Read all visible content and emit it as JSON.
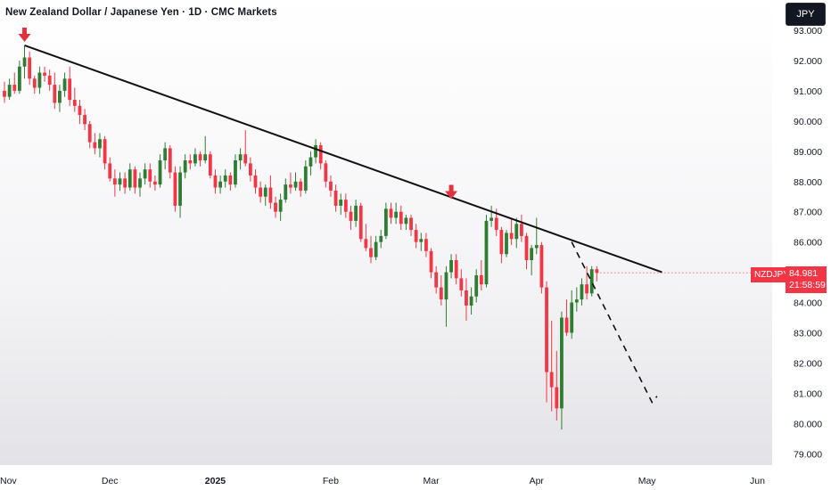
{
  "header": {
    "title": "New Zealand Dollar / Japanese Yen · 1D · CMC Markets",
    "currency": "JPY"
  },
  "price_marker": {
    "symbol": "NZDJPY",
    "value": "84.981",
    "countdown": "21:58:59",
    "color": "#f23645"
  },
  "colors": {
    "up": "#2e7d32",
    "down": "#f23645",
    "arrow": "#e0323f",
    "trendline": "#111111"
  },
  "chart_data": {
    "type": "candlestick",
    "interval": "1D",
    "y_axis": {
      "min": 78.8,
      "max": 93.4,
      "ticks": [
        "79.000",
        "80.000",
        "81.000",
        "82.000",
        "83.000",
        "84.000",
        "85.000",
        "86.000",
        "87.000",
        "88.000",
        "89.000",
        "90.000",
        "91.000",
        "92.000",
        "93.000"
      ]
    },
    "x_axis": {
      "labels": [
        {
          "label": "Nov",
          "index": 0
        },
        {
          "label": "Dec",
          "index": 21
        },
        {
          "label": "2025",
          "index": 42
        },
        {
          "label": "Feb",
          "index": 65
        },
        {
          "label": "Mar",
          "index": 85
        },
        {
          "label": "Apr",
          "index": 106
        },
        {
          "label": "May",
          "index": 128
        },
        {
          "label": "Jun",
          "index": 150
        }
      ]
    },
    "candles": [
      [
        91.0,
        91.3,
        90.6,
        90.8
      ],
      [
        90.8,
        91.4,
        90.7,
        91.2
      ],
      [
        91.2,
        91.6,
        90.9,
        91.0
      ],
      [
        91.0,
        92.0,
        90.9,
        91.8
      ],
      [
        91.8,
        92.5,
        91.4,
        92.1
      ],
      [
        92.1,
        92.3,
        91.2,
        91.4
      ],
      [
        91.4,
        91.5,
        90.9,
        91.1
      ],
      [
        91.1,
        91.8,
        90.9,
        91.6
      ],
      [
        91.6,
        91.8,
        91.3,
        91.5
      ],
      [
        91.5,
        91.7,
        91.0,
        91.2
      ],
      [
        91.2,
        91.6,
        90.4,
        90.6
      ],
      [
        90.6,
        91.2,
        90.3,
        91.0
      ],
      [
        91.0,
        91.6,
        90.8,
        91.4
      ],
      [
        91.4,
        91.8,
        90.5,
        90.7
      ],
      [
        90.7,
        91.1,
        90.3,
        90.5
      ],
      [
        90.5,
        90.7,
        89.9,
        90.2
      ],
      [
        90.2,
        90.4,
        89.7,
        89.9
      ],
      [
        89.9,
        90.0,
        89.1,
        89.3
      ],
      [
        89.3,
        89.6,
        88.9,
        89.1
      ],
      [
        89.1,
        89.6,
        88.8,
        89.4
      ],
      [
        89.4,
        89.5,
        88.4,
        88.6
      ],
      [
        88.6,
        88.8,
        88.0,
        88.1
      ],
      [
        88.1,
        88.4,
        87.5,
        87.9
      ],
      [
        87.9,
        88.3,
        87.7,
        88.1
      ],
      [
        88.1,
        88.3,
        87.6,
        87.8
      ],
      [
        87.8,
        88.6,
        87.7,
        88.4
      ],
      [
        88.4,
        88.5,
        87.6,
        87.8
      ],
      [
        87.8,
        88.3,
        87.5,
        88.1
      ],
      [
        88.1,
        88.6,
        87.9,
        88.4
      ],
      [
        88.4,
        88.6,
        87.8,
        88.0
      ],
      [
        88.0,
        88.2,
        87.7,
        87.9
      ],
      [
        87.9,
        88.9,
        87.8,
        88.7
      ],
      [
        88.7,
        89.3,
        88.4,
        89.1
      ],
      [
        89.1,
        89.2,
        88.1,
        88.3
      ],
      [
        88.3,
        88.5,
        87.0,
        87.2
      ],
      [
        87.2,
        88.5,
        86.8,
        88.3
      ],
      [
        88.3,
        88.9,
        88.1,
        88.7
      ],
      [
        88.7,
        88.9,
        88.4,
        88.6
      ],
      [
        88.6,
        89.1,
        88.5,
        88.9
      ],
      [
        88.9,
        89.0,
        88.5,
        88.7
      ],
      [
        88.7,
        89.5,
        88.6,
        88.9
      ],
      [
        88.9,
        89.0,
        88.1,
        88.2
      ],
      [
        88.2,
        88.4,
        87.6,
        87.8
      ],
      [
        87.8,
        88.2,
        87.6,
        88.0
      ],
      [
        88.0,
        88.4,
        87.8,
        88.2
      ],
      [
        88.2,
        88.3,
        87.7,
        87.9
      ],
      [
        87.9,
        88.9,
        87.8,
        88.7
      ],
      [
        88.7,
        89.1,
        88.4,
        88.9
      ],
      [
        88.9,
        89.7,
        88.5,
        88.6
      ],
      [
        88.6,
        88.8,
        88.0,
        88.2
      ],
      [
        88.2,
        88.4,
        87.6,
        87.8
      ],
      [
        87.8,
        88.0,
        87.3,
        87.5
      ],
      [
        87.5,
        87.9,
        87.2,
        87.8
      ],
      [
        87.8,
        88.2,
        87.1,
        87.3
      ],
      [
        87.3,
        87.5,
        86.8,
        87.0
      ],
      [
        87.0,
        87.6,
        86.7,
        87.4
      ],
      [
        87.4,
        88.1,
        87.3,
        87.9
      ],
      [
        87.9,
        88.3,
        87.6,
        87.8
      ],
      [
        87.8,
        88.3,
        87.7,
        88.0
      ],
      [
        88.0,
        88.1,
        87.5,
        87.7
      ],
      [
        87.7,
        88.7,
        87.6,
        88.5
      ],
      [
        88.5,
        89.0,
        88.2,
        88.8
      ],
      [
        88.8,
        89.4,
        88.6,
        89.2
      ],
      [
        89.2,
        89.3,
        88.4,
        88.6
      ],
      [
        88.6,
        88.7,
        87.8,
        88.0
      ],
      [
        88.0,
        88.2,
        87.5,
        87.7
      ],
      [
        87.7,
        87.9,
        87.0,
        87.2
      ],
      [
        87.2,
        87.6,
        86.9,
        87.4
      ],
      [
        87.4,
        87.6,
        86.8,
        87.0
      ],
      [
        87.0,
        87.2,
        86.4,
        86.7
      ],
      [
        86.7,
        87.4,
        86.5,
        87.2
      ],
      [
        87.2,
        87.3,
        86.0,
        86.1
      ],
      [
        86.1,
        86.6,
        85.7,
        85.8
      ],
      [
        85.8,
        86.2,
        85.3,
        85.5
      ],
      [
        85.5,
        86.2,
        85.4,
        86.0
      ],
      [
        86.0,
        86.4,
        85.8,
        86.2
      ],
      [
        86.2,
        87.3,
        86.1,
        87.1
      ],
      [
        87.1,
        87.3,
        86.6,
        86.8
      ],
      [
        86.8,
        87.3,
        86.6,
        87.0
      ],
      [
        87.0,
        87.2,
        86.4,
        86.6
      ],
      [
        86.6,
        86.9,
        86.4,
        86.8
      ],
      [
        86.8,
        86.9,
        86.2,
        86.4
      ],
      [
        86.4,
        86.6,
        85.8,
        86.0
      ],
      [
        86.0,
        86.3,
        85.7,
        86.1
      ],
      [
        86.1,
        86.3,
        85.5,
        85.7
      ],
      [
        85.7,
        85.8,
        84.8,
        85.0
      ],
      [
        85.0,
        85.2,
        84.3,
        84.5
      ],
      [
        84.5,
        84.9,
        83.9,
        84.1
      ],
      [
        84.1,
        85.2,
        83.2,
        85.0
      ],
      [
        85.0,
        85.6,
        84.8,
        85.4
      ],
      [
        85.4,
        85.6,
        84.6,
        84.8
      ],
      [
        84.8,
        85.1,
        84.2,
        84.4
      ],
      [
        84.4,
        84.8,
        83.4,
        83.9
      ],
      [
        83.9,
        84.5,
        83.6,
        84.2
      ],
      [
        84.2,
        85.1,
        84.0,
        84.9
      ],
      [
        84.9,
        85.4,
        84.4,
        84.6
      ],
      [
        84.6,
        86.9,
        84.5,
        86.7
      ],
      [
        86.7,
        87.2,
        86.5,
        86.8
      ],
      [
        86.8,
        87.1,
        86.2,
        86.4
      ],
      [
        86.4,
        86.5,
        85.3,
        85.6
      ],
      [
        85.6,
        86.4,
        85.5,
        86.3
      ],
      [
        86.3,
        86.8,
        85.9,
        86.1
      ],
      [
        86.1,
        86.8,
        85.8,
        86.6
      ],
      [
        86.6,
        86.9,
        86.0,
        86.2
      ],
      [
        86.2,
        86.3,
        85.1,
        85.4
      ],
      [
        85.4,
        85.9,
        84.9,
        85.8
      ],
      [
        85.8,
        86.8,
        85.6,
        85.9
      ],
      [
        85.9,
        86.0,
        84.3,
        84.5
      ],
      [
        84.5,
        84.7,
        80.7,
        81.7
      ],
      [
        81.7,
        83.4,
        80.4,
        81.2
      ],
      [
        81.2,
        82.4,
        80.1,
        80.5
      ],
      [
        80.5,
        83.7,
        79.8,
        83.5
      ],
      [
        83.5,
        84.1,
        82.9,
        83.0
      ],
      [
        83.0,
        84.4,
        82.8,
        84.0
      ],
      [
        84.0,
        84.5,
        83.7,
        84.1
      ],
      [
        84.1,
        84.8,
        83.9,
        84.6
      ],
      [
        84.6,
        85.2,
        84.1,
        84.3
      ],
      [
        84.3,
        85.2,
        84.2,
        85.1
      ],
      [
        85.1,
        85.2,
        84.7,
        84.98
      ]
    ],
    "trendline": {
      "from": [
        4,
        92.5
      ],
      "to": [
        131,
        85.0
      ]
    },
    "projection": [
      [
        113,
        86.0
      ],
      [
        129,
        80.7
      ],
      [
        130,
        80.9
      ]
    ],
    "arrows": [
      {
        "index": 4,
        "price": 92.5
      },
      {
        "index": 89,
        "price": 87.3
      }
    ],
    "last_price": 84.981
  }
}
